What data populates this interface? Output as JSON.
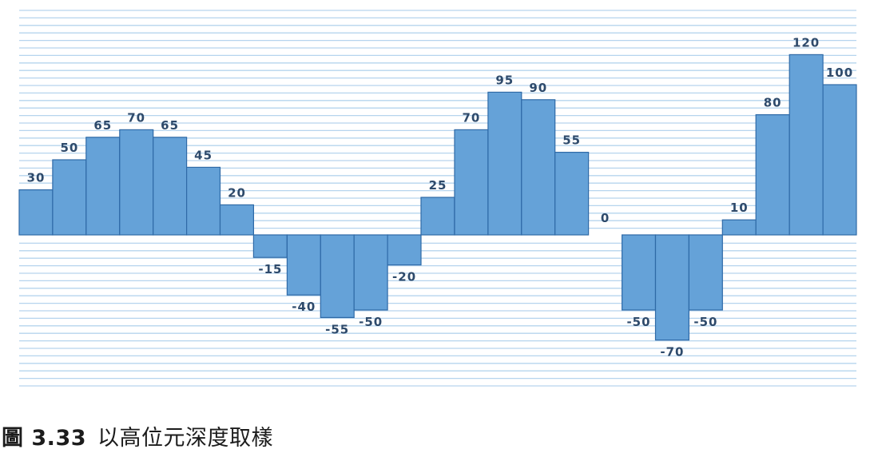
{
  "chart_data": {
    "type": "bar",
    "title": "",
    "xlabel": "",
    "ylabel": "",
    "values": [
      30,
      50,
      65,
      70,
      65,
      45,
      20,
      -15,
      -40,
      -55,
      -50,
      -20,
      25,
      70,
      95,
      90,
      55,
      0,
      -50,
      -70,
      -50,
      10,
      80,
      120,
      100
    ],
    "ylim": [
      -100,
      150
    ],
    "grid": true,
    "colors": {
      "bar_fill": "#65a2d8",
      "bar_stroke": "#2f6aa7",
      "gridline": "#b6d4ee",
      "label": "#2e4a6b"
    }
  },
  "caption": {
    "number": "圖 3.33",
    "text": "以高位元深度取樣"
  }
}
